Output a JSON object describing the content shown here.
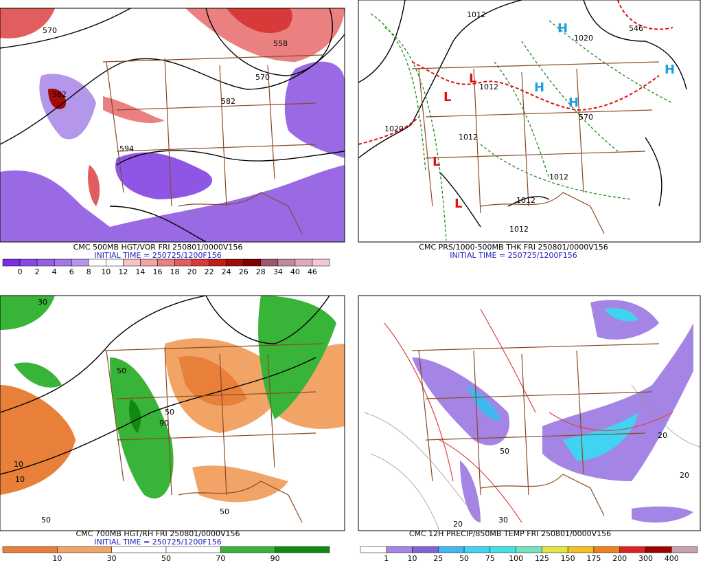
{
  "panels": [
    {
      "caption": "CMC 500MB HGT/VOR FRI 250801/0000V156",
      "initial_time": "INITIAL TIME = 250725/1200F156",
      "legend": {
        "labels": [
          0,
          2,
          4,
          6,
          8,
          10,
          12,
          14,
          16,
          18,
          20,
          22,
          24,
          26,
          28,
          34,
          40,
          46
        ],
        "colors": [
          "#7a2ee6",
          "#8a48e8",
          "#9660e4",
          "#a278e4",
          "#b496ea",
          "#ffffff",
          "#ffffff",
          "#f6c4c4",
          "#f0a4a4",
          "#ea8080",
          "#e25e5e",
          "#d83a3a",
          "#c01c1c",
          "#a00a0a",
          "#800000",
          "#a0566e",
          "#c08c9c",
          "#e0aabb",
          "#f2c6d4"
        ]
      },
      "map_labels": [
        "570",
        "558",
        "570",
        "582",
        "582",
        "594"
      ]
    },
    {
      "caption": "CMC PRS/1000-500MB THK FRI 250801/0000V156",
      "initial_time": "INITIAL TIME = 250725/1200F156",
      "map_labels": [
        "1012",
        "1012",
        "1020",
        "1020",
        "1012",
        "1012",
        "1012",
        "1012",
        "546",
        "570",
        "H",
        "H",
        "H",
        "H",
        "L",
        "L",
        "L",
        "L"
      ]
    },
    {
      "caption": "CMC 700MB HGT/RH FRI 250801/0000V156",
      "initial_time": "INITIAL TIME = 250725/1200F156",
      "legend": {
        "labels": [
          10,
          30,
          50,
          70,
          90
        ],
        "colors": [
          "#e8803a",
          "#f2a466",
          "#ffffff",
          "#ffffff",
          "#38b438",
          "#128a12"
        ]
      },
      "map_labels": [
        "30",
        "50",
        "50",
        "10",
        "10",
        "90",
        "50",
        "50"
      ]
    },
    {
      "caption": "CMC 12H PRECIP/850MB TEMP FRI 250801/0000V156",
      "legend": {
        "labels": [
          1,
          10,
          25,
          50,
          75,
          100,
          125,
          150,
          175,
          200,
          300,
          400
        ],
        "colors": [
          "#ffffff",
          "#a484e4",
          "#8262d8",
          "#40b8f0",
          "#40d4f2",
          "#40e2e2",
          "#72e2c2",
          "#e4e440",
          "#f2c020",
          "#f08020",
          "#e02020",
          "#a00000",
          "#c4a2b2"
        ]
      },
      "map_labels": [
        "20",
        "50",
        "30",
        "20",
        "20"
      ]
    }
  ]
}
